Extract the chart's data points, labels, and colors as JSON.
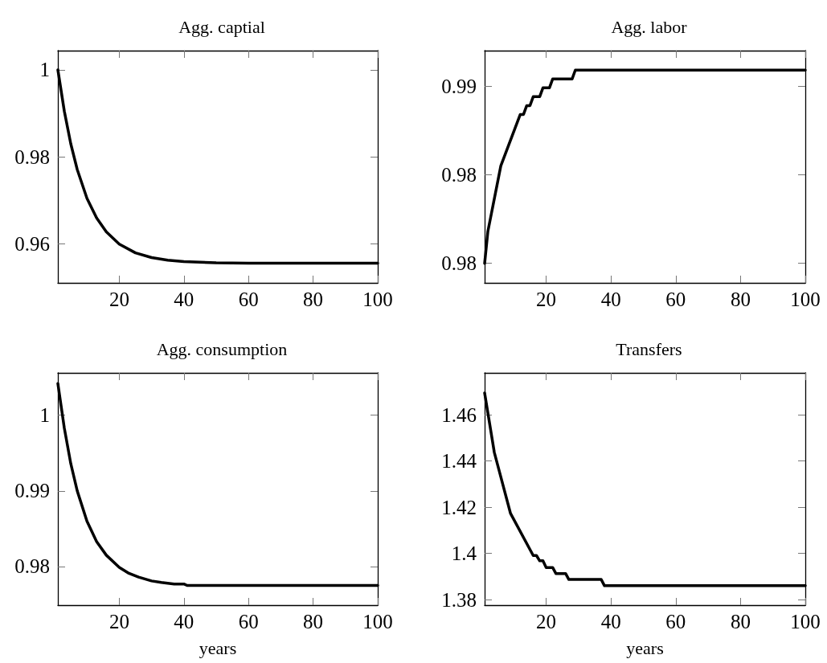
{
  "chart_data": [
    {
      "type": "line",
      "title": "Agg. captial",
      "color": "#000000",
      "marker": "none",
      "grid": false,
      "x": [
        1,
        3,
        5,
        7,
        10,
        13,
        16,
        20,
        25,
        30,
        35,
        40,
        50,
        60,
        80,
        100
      ],
      "values": [
        1.0,
        0.9905,
        0.983,
        0.9771,
        0.9705,
        0.966,
        0.9628,
        0.96,
        0.958,
        0.9569,
        0.9563,
        0.956,
        0.9557,
        0.9556,
        0.9556,
        0.9556
      ],
      "xlim": [
        1,
        100
      ],
      "xticks": [
        20,
        40,
        60,
        80,
        100
      ],
      "ylim": [
        0.9511,
        1.0044
      ],
      "yticks": [
        0.96,
        0.98,
        1
      ]
    },
    {
      "type": "line",
      "title": "Agg. labor",
      "color": "#000000",
      "marker": "none",
      "grid": false,
      "x": [
        1,
        2,
        6,
        12,
        13,
        14,
        15,
        16,
        18,
        19,
        21,
        22,
        28,
        29,
        100
      ],
      "values": [
        0.98,
        0.9818,
        0.9855,
        0.9884,
        0.9884,
        0.9889,
        0.9889,
        0.9894,
        0.9894,
        0.9899,
        0.9899,
        0.9904,
        0.9904,
        0.9909,
        0.9909
      ],
      "xlim": [
        1,
        100
      ],
      "xticks": [
        20,
        40,
        60,
        80,
        100
      ],
      "ylim": [
        0.9789,
        0.992
      ],
      "yticks": [
        {
          "value": 0.98,
          "label": "0.98"
        },
        {
          "value": 0.985,
          "label": "0.98"
        },
        0.99
      ]
    },
    {
      "type": "line",
      "title": "Agg. consumption",
      "xlabel": "years",
      "color": "#000000",
      "marker": "none",
      "grid": false,
      "x": [
        1,
        3,
        5,
        7,
        10,
        13,
        16,
        20,
        23,
        26,
        30,
        33,
        37,
        40,
        41,
        100
      ],
      "values": [
        1.0042,
        0.9983,
        0.9936,
        0.99,
        0.986,
        0.9833,
        0.9815,
        0.9799,
        0.9791,
        0.9786,
        0.9781,
        0.9779,
        0.9777,
        0.9777,
        0.9775,
        0.9775
      ],
      "xlim": [
        1,
        100
      ],
      "xticks": [
        20,
        40,
        60,
        80,
        100
      ],
      "ylim": [
        0.9749,
        1.0056
      ],
      "yticks": [
        0.98,
        0.99,
        1
      ]
    },
    {
      "type": "line",
      "title": "Transfers",
      "xlabel": "years",
      "color": "#000000",
      "marker": "none",
      "grid": false,
      "x": [
        1,
        4,
        9,
        16,
        17,
        18,
        19,
        20,
        22,
        23,
        26,
        27,
        37,
        38,
        100
      ],
      "values": [
        1.4695,
        1.4437,
        1.4173,
        1.3991,
        1.3991,
        1.3968,
        1.3968,
        1.3939,
        1.3939,
        1.3913,
        1.3913,
        1.3887,
        1.3887,
        1.386,
        1.386
      ],
      "xlim": [
        1,
        100
      ],
      "xticks": [
        20,
        40,
        60,
        80,
        100
      ],
      "ylim": [
        1.3776,
        1.4782
      ],
      "yticks": [
        1.38,
        1.4,
        1.42,
        1.44,
        1.46
      ]
    }
  ]
}
